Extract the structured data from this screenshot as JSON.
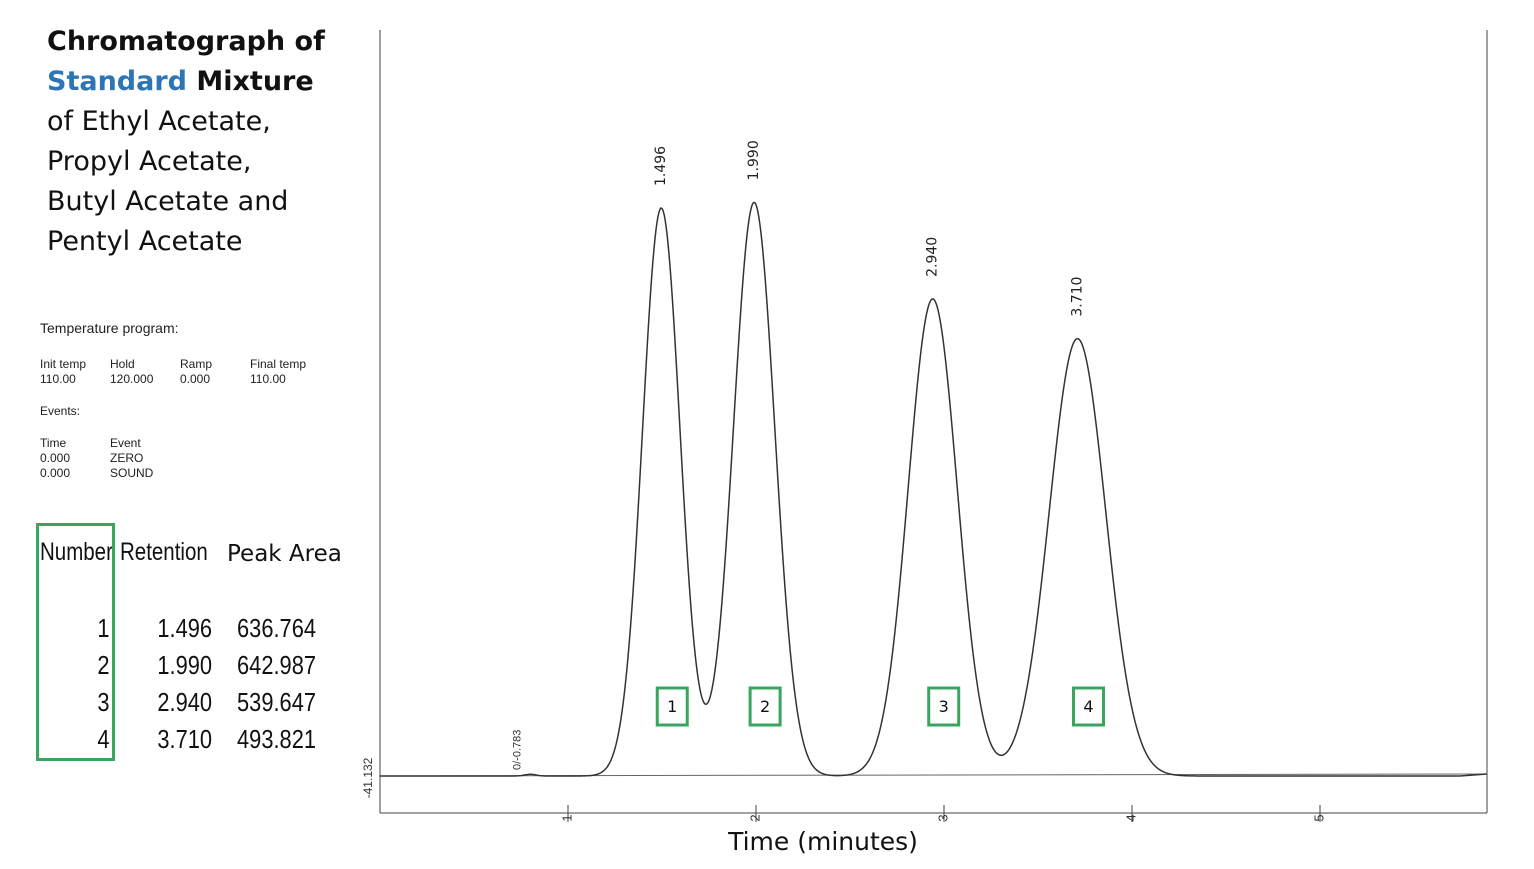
{
  "title": {
    "line1": "Chromatograph of",
    "line2_highlight": "Standard",
    "line2_rest": " Mixture",
    "line3": "of Ethyl Acetate,",
    "line4": "Propyl Acetate,",
    "line5": "Butyl Acetate and",
    "line6": "Pentyl Acetate"
  },
  "temperature_program": {
    "label": "Temperature program:",
    "columns": [
      {
        "header": "Init temp",
        "value": "110.00"
      },
      {
        "header": "Hold",
        "value": "120.000"
      },
      {
        "header": "Ramp",
        "value": "0.000"
      },
      {
        "header": "Final temp",
        "value": "110.00"
      }
    ]
  },
  "events": {
    "label": "Events:",
    "time_header": "Time",
    "event_header": "Event",
    "rows": [
      {
        "time": "0.000",
        "event": "ZERO"
      },
      {
        "time": "0.000",
        "event": "SOUND"
      }
    ]
  },
  "peak_table": {
    "headers": [
      "Number",
      "Retention",
      "Peak Area"
    ],
    "rows": [
      [
        "1",
        "1.496",
        "636.764"
      ],
      [
        "2",
        "1.990",
        "642.987"
      ],
      [
        "3",
        "2.940",
        "539.647"
      ],
      [
        "4",
        "3.710",
        "493.821"
      ]
    ]
  },
  "colors": {
    "highlight": "#2e75b6",
    "box": "#3aa55f",
    "trace": "#333333"
  },
  "chart_data": {
    "type": "line",
    "xlabel": "Time (minutes)",
    "ylabel": "",
    "x_ticks": [
      "1",
      "2",
      "3",
      "4",
      "5"
    ],
    "xlim": [
      0,
      5.9
    ],
    "baseline_label": "-41.132",
    "small_peak_label": "0/-0.783",
    "small_peak_x": 0.8,
    "peaks": [
      {
        "number": "1",
        "retention": 1.496,
        "label": "1.496",
        "relative_height": 1.0,
        "width": 0.1
      },
      {
        "number": "2",
        "retention": 1.99,
        "label": "1.990",
        "relative_height": 1.01,
        "width": 0.11
      },
      {
        "number": "3",
        "retention": 2.94,
        "label": "2.940",
        "relative_height": 0.84,
        "width": 0.13
      },
      {
        "number": "4",
        "retention": 3.71,
        "label": "3.710",
        "relative_height": 0.77,
        "width": 0.15
      }
    ],
    "grid": false
  }
}
